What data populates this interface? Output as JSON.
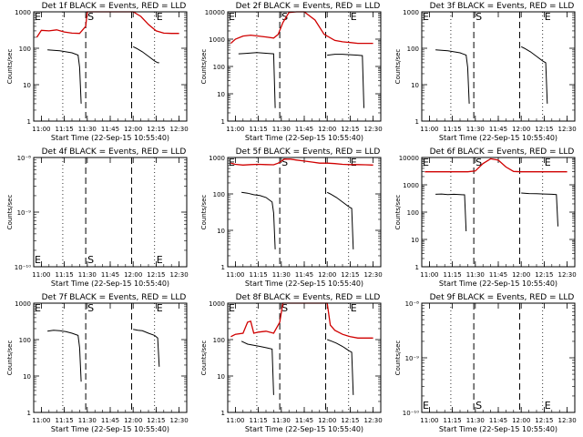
{
  "figure": {
    "ylabel": "Counts/sec",
    "xlabel": "Start Time (22-Sep-15 10:55:40)",
    "colors": {
      "events": "#000000",
      "lld": "#d00000",
      "background": "#ffffff"
    }
  },
  "chart_data": [
    {
      "type": "line",
      "title": "Det 1f BLACK = Events, RED = LLD",
      "xlabel": "Start Time (22-Sep-15 10:55:40)",
      "ylabel": "Counts/sec",
      "yscale": "log",
      "ylim": [
        1,
        1000
      ],
      "xlim": [
        "10:55",
        "12:35"
      ],
      "x_ticks": [
        "11:00",
        "11:15",
        "11:30",
        "11:45",
        "12:00",
        "12:15",
        "12:30"
      ],
      "y_ticks": [
        "1",
        "10",
        "100",
        "1000"
      ],
      "vlines": [
        {
          "x": "11:14",
          "style": "dotted"
        },
        {
          "x": "11:29",
          "style": "dashed",
          "label": "S"
        },
        {
          "x": "11:59",
          "style": "dashed"
        },
        {
          "x": "12:14",
          "style": "dotted",
          "label": "E"
        }
      ],
      "corner_label": "E",
      "series": [
        {
          "x": [
            "10:57",
            "11:00",
            "11:05",
            "11:10",
            "11:15",
            "11:20",
            "11:25",
            "11:29",
            "11:30",
            "11:33",
            "11:35",
            "11:40",
            "11:45",
            "12:00",
            "12:05",
            "12:10",
            "12:15",
            "12:20",
            "12:25",
            "12:30"
          ],
          "values": [
            200,
            310,
            300,
            320,
            280,
            260,
            255,
            400,
            1000,
            1000,
            1000,
            1000,
            1000,
            1000,
            750,
            450,
            300,
            260,
            255,
            255
          ]
        },
        {
          "x": [
            "11:04",
            "11:08",
            "11:12",
            "11:16",
            "11:20",
            "11:24",
            "11:25",
            "11:26"
          ],
          "values": [
            90,
            88,
            85,
            80,
            75,
            65,
            30,
            3
          ]
        },
        {
          "x": [
            "12:00",
            "12:02",
            "12:06",
            "12:10",
            "12:14",
            "12:16",
            "12:17"
          ],
          "values": [
            110,
            100,
            80,
            60,
            45,
            40,
            40
          ]
        }
      ]
    },
    {
      "type": "line",
      "title": "Det 2f BLACK = Events, RED = LLD",
      "xlabel": "Start Time (22-Sep-15 10:55:40)",
      "ylabel": "Counts/sec",
      "yscale": "log",
      "ylim": [
        1,
        10000
      ],
      "xlim": [
        "10:55",
        "12:35"
      ],
      "x_ticks": [
        "11:00",
        "11:15",
        "11:30",
        "11:45",
        "12:00",
        "12:15",
        "12:30"
      ],
      "y_ticks": [
        "1",
        "10",
        "100",
        "1000",
        "10000"
      ],
      "vlines": [
        {
          "x": "11:14",
          "style": "dotted"
        },
        {
          "x": "11:29",
          "style": "dashed",
          "label": "S"
        },
        {
          "x": "11:59",
          "style": "dashed"
        },
        {
          "x": "12:14",
          "style": "dotted",
          "label": "E"
        }
      ],
      "corner_label": "E",
      "series": [
        {
          "x": [
            "10:57",
            "11:00",
            "11:05",
            "11:10",
            "11:15",
            "11:20",
            "11:25",
            "11:28",
            "11:31",
            "11:35",
            "11:40",
            "11:45",
            "11:52",
            "11:58",
            "12:05",
            "12:10",
            "12:15",
            "12:20",
            "12:25",
            "12:30"
          ],
          "values": [
            700,
            1000,
            1300,
            1400,
            1300,
            1200,
            1100,
            1500,
            4000,
            9500,
            10000,
            10000,
            5000,
            1500,
            900,
            800,
            750,
            700,
            700,
            700
          ]
        },
        {
          "x": [
            "11:02",
            "11:06",
            "11:10",
            "11:14",
            "11:18",
            "11:22",
            "11:25",
            "11:26"
          ],
          "values": [
            290,
            300,
            310,
            320,
            310,
            300,
            290,
            3
          ]
        },
        {
          "x": [
            "12:00",
            "12:05",
            "12:10",
            "12:15",
            "12:20",
            "12:23",
            "12:24"
          ],
          "values": [
            260,
            280,
            280,
            270,
            260,
            250,
            3
          ]
        }
      ]
    },
    {
      "type": "line",
      "title": "Det 3f BLACK = Events, RED = LLD",
      "xlabel": "Start Time (22-Sep-15 10:55:40)",
      "ylabel": "Counts/sec",
      "yscale": "log",
      "ylim": [
        1,
        1000
      ],
      "xlim": [
        "10:55",
        "12:35"
      ],
      "x_ticks": [
        "11:00",
        "11:15",
        "11:30",
        "11:45",
        "12:00",
        "12:15",
        "12:30"
      ],
      "y_ticks": [
        "1",
        "10",
        "100",
        "1000"
      ],
      "vlines": [
        {
          "x": "11:14",
          "style": "dotted"
        },
        {
          "x": "11:29",
          "style": "dashed",
          "label": "S"
        },
        {
          "x": "11:59",
          "style": "dashed"
        },
        {
          "x": "12:14",
          "style": "dotted",
          "label": "E"
        }
      ],
      "corner_label": "E",
      "series": [
        {
          "x": [],
          "values": []
        },
        {
          "x": [
            "11:04",
            "11:08",
            "11:12",
            "11:16",
            "11:20",
            "11:24",
            "11:25",
            "11:26"
          ],
          "values": [
            90,
            88,
            85,
            80,
            75,
            65,
            30,
            3
          ]
        },
        {
          "x": [
            "12:00",
            "12:02",
            "12:06",
            "12:10",
            "12:14",
            "12:16",
            "12:17"
          ],
          "values": [
            110,
            100,
            80,
            60,
            45,
            40,
            3
          ]
        }
      ]
    },
    {
      "type": "line",
      "title": "Det 4f BLACK = Events, RED = LLD",
      "xlabel": "Start Time (22-Sep-15 10:55:40)",
      "ylabel": "Counts/sec",
      "yscale": "log",
      "ylim": [
        1e-10,
        1e-08
      ],
      "xlim": [
        "10:55",
        "12:35"
      ],
      "x_ticks": [
        "11:00",
        "11:15",
        "11:30",
        "11:45",
        "12:00",
        "12:15",
        "12:30"
      ],
      "y_ticks": [
        "10⁻¹⁰",
        "10⁻⁹",
        "10⁻⁸"
      ],
      "vlines": [
        {
          "x": "11:14",
          "style": "dotted"
        },
        {
          "x": "11:29",
          "style": "dashed",
          "label": "S"
        },
        {
          "x": "11:59",
          "style": "dashed"
        },
        {
          "x": "12:14",
          "style": "dotted",
          "label": "E"
        }
      ],
      "corner_label": "E",
      "series": [
        {
          "x": [],
          "values": []
        },
        {
          "x": [],
          "values": []
        },
        {
          "x": [],
          "values": []
        }
      ]
    },
    {
      "type": "line",
      "title": "Det 5f BLACK = Events, RED = LLD",
      "xlabel": "Start Time (22-Sep-15 10:55:40)",
      "ylabel": "Counts/sec",
      "yscale": "log",
      "ylim": [
        1,
        1000
      ],
      "xlim": [
        "10:55",
        "12:35"
      ],
      "x_ticks": [
        "11:00",
        "11:15",
        "11:30",
        "11:45",
        "12:00",
        "12:15",
        "12:30"
      ],
      "y_ticks": [
        "1",
        "10",
        "100",
        "1000"
      ],
      "vlines": [
        {
          "x": "11:14",
          "style": "dotted"
        },
        {
          "x": "11:29",
          "style": "dashed",
          "label": "S"
        },
        {
          "x": "11:59",
          "style": "dashed"
        },
        {
          "x": "12:14",
          "style": "dotted",
          "label": "E"
        }
      ],
      "corner_label": "E",
      "series": [
        {
          "x": [
            "10:57",
            "11:00",
            "11:05",
            "11:10",
            "11:15",
            "11:20",
            "11:25",
            "11:28",
            "11:32",
            "11:36",
            "11:40",
            "11:45",
            "11:50",
            "11:55",
            "12:00",
            "12:05",
            "12:10",
            "12:15",
            "12:20",
            "12:25",
            "12:30"
          ],
          "values": [
            700,
            650,
            620,
            640,
            650,
            640,
            630,
            700,
            900,
            900,
            850,
            800,
            750,
            700,
            700,
            680,
            650,
            640,
            640,
            630,
            620
          ]
        },
        {
          "x": [
            "11:04",
            "11:08",
            "11:12",
            "11:16",
            "11:20",
            "11:24",
            "11:25",
            "11:26"
          ],
          "values": [
            110,
            105,
            95,
            90,
            80,
            60,
            30,
            3
          ]
        },
        {
          "x": [
            "12:00",
            "12:02",
            "12:06",
            "12:10",
            "12:14",
            "12:16",
            "12:17"
          ],
          "values": [
            110,
            100,
            80,
            60,
            45,
            40,
            3
          ]
        }
      ]
    },
    {
      "type": "line",
      "title": "Det 6f BLACK = Events, RED = LLD",
      "xlabel": "Start Time (22-Sep-15 10:55:40)",
      "ylabel": "Counts/sec",
      "yscale": "log",
      "ylim": [
        1,
        10000
      ],
      "xlim": [
        "10:55",
        "12:35"
      ],
      "x_ticks": [
        "11:00",
        "11:15",
        "11:30",
        "11:45",
        "12:00",
        "12:15",
        "12:30"
      ],
      "y_ticks": [
        "1",
        "10",
        "100",
        "1000",
        "10000"
      ],
      "vlines": [
        {
          "x": "11:14",
          "style": "dotted"
        },
        {
          "x": "11:29",
          "style": "dashed",
          "label": "S"
        },
        {
          "x": "11:59",
          "style": "dashed"
        },
        {
          "x": "12:14",
          "style": "dotted",
          "label": "E"
        }
      ],
      "corner_label": "E",
      "series": [
        {
          "x": [
            "10:57",
            "11:05",
            "11:15",
            "11:25",
            "11:30",
            "11:35",
            "11:40",
            "11:45",
            "11:50",
            "11:55",
            "12:00",
            "12:10",
            "12:20",
            "12:30"
          ],
          "values": [
            3000,
            3000,
            3000,
            3000,
            3200,
            6000,
            9000,
            8000,
            4500,
            3100,
            3000,
            3000,
            3000,
            3000
          ]
        },
        {
          "x": [
            "11:04",
            "11:08",
            "11:12",
            "11:16",
            "11:20",
            "11:23",
            "11:24"
          ],
          "values": [
            450,
            460,
            440,
            450,
            440,
            430,
            20
          ]
        },
        {
          "x": [
            "12:00",
            "12:05",
            "12:10",
            "12:15",
            "12:20",
            "12:23",
            "12:24"
          ],
          "values": [
            500,
            480,
            470,
            460,
            450,
            440,
            30
          ]
        }
      ]
    },
    {
      "type": "line",
      "title": "Det 7f BLACK = Events, RED = LLD",
      "xlabel": "Start Time (22-Sep-15 10:55:40)",
      "ylabel": "Counts/sec",
      "yscale": "log",
      "ylim": [
        1,
        1000
      ],
      "xlim": [
        "10:55",
        "12:35"
      ],
      "x_ticks": [
        "11:00",
        "11:15",
        "11:30",
        "11:45",
        "12:00",
        "12:15",
        "12:30"
      ],
      "y_ticks": [
        "1",
        "10",
        "100",
        "1000"
      ],
      "vlines": [
        {
          "x": "11:14",
          "style": "dotted"
        },
        {
          "x": "11:29",
          "style": "dashed",
          "label": "S"
        },
        {
          "x": "11:59",
          "style": "dashed"
        },
        {
          "x": "12:14",
          "style": "dotted",
          "label": "E"
        }
      ],
      "corner_label": "E",
      "series": [
        {
          "x": [],
          "values": []
        },
        {
          "x": [
            "11:04",
            "11:08",
            "11:12",
            "11:16",
            "11:20",
            "11:24",
            "11:25",
            "11:26"
          ],
          "values": [
            170,
            180,
            175,
            165,
            150,
            130,
            60,
            7
          ]
        },
        {
          "x": [
            "12:00",
            "12:03",
            "12:06",
            "12:10",
            "12:14",
            "12:16",
            "12:17"
          ],
          "values": [
            190,
            180,
            175,
            150,
            130,
            110,
            18
          ]
        }
      ]
    },
    {
      "type": "line",
      "title": "Det 8f BLACK = Events, RED = LLD",
      "xlabel": "Start Time (22-Sep-15 10:55:40)",
      "ylabel": "Counts/sec",
      "yscale": "log",
      "ylim": [
        1,
        1000
      ],
      "xlim": [
        "10:55",
        "12:35"
      ],
      "x_ticks": [
        "11:00",
        "11:15",
        "11:30",
        "11:45",
        "12:00",
        "12:15",
        "12:30"
      ],
      "y_ticks": [
        "1",
        "10",
        "100",
        "1000"
      ],
      "vlines": [
        {
          "x": "11:14",
          "style": "dotted"
        },
        {
          "x": "11:29",
          "style": "dashed",
          "label": "S"
        },
        {
          "x": "11:59",
          "style": "dashed"
        },
        {
          "x": "12:14",
          "style": "dotted",
          "label": "E"
        }
      ],
      "corner_label": "E",
      "series": [
        {
          "x": [
            "10:57",
            "11:00",
            "11:05",
            "11:08",
            "11:10",
            "11:12",
            "11:15",
            "11:20",
            "11:25",
            "11:29",
            "11:31",
            "11:35",
            "11:40",
            "11:45",
            "11:55",
            "12:00",
            "12:02",
            "12:05",
            "12:10",
            "12:15",
            "12:20",
            "12:25",
            "12:30"
          ],
          "values": [
            120,
            140,
            150,
            300,
            320,
            150,
            160,
            170,
            150,
            300,
            1000,
            1000,
            1000,
            1000,
            1000,
            1000,
            250,
            180,
            140,
            120,
            110,
            110,
            110
          ]
        },
        {
          "x": [
            "11:04",
            "11:08",
            "11:12",
            "11:16",
            "11:20",
            "11:24",
            "11:25"
          ],
          "values": [
            90,
            75,
            70,
            65,
            60,
            55,
            3
          ]
        },
        {
          "x": [
            "12:00",
            "12:03",
            "12:06",
            "12:10",
            "12:14",
            "12:16",
            "12:17"
          ],
          "values": [
            100,
            90,
            80,
            65,
            50,
            45,
            3
          ]
        }
      ]
    },
    {
      "type": "line",
      "title": "Det 9f BLACK = Events, RED = LLD",
      "xlabel": "Start Time (22-Sep-15 10:55:40)",
      "ylabel": "Counts/sec",
      "yscale": "log",
      "ylim": [
        1e-10,
        1e-08
      ],
      "xlim": [
        "10:55",
        "12:35"
      ],
      "x_ticks": [
        "11:00",
        "11:15",
        "11:30",
        "11:45",
        "12:00",
        "12:15",
        "12:30"
      ],
      "y_ticks": [
        "10⁻¹⁰",
        "10⁻⁹",
        "10⁻⁸"
      ],
      "vlines": [
        {
          "x": "11:14",
          "style": "dotted"
        },
        {
          "x": "11:29",
          "style": "dashed",
          "label": "S"
        },
        {
          "x": "11:59",
          "style": "dashed"
        },
        {
          "x": "12:14",
          "style": "dotted",
          "label": "E"
        }
      ],
      "corner_label": "E",
      "series": [
        {
          "x": [],
          "values": []
        },
        {
          "x": [],
          "values": []
        },
        {
          "x": [],
          "values": []
        }
      ]
    }
  ]
}
